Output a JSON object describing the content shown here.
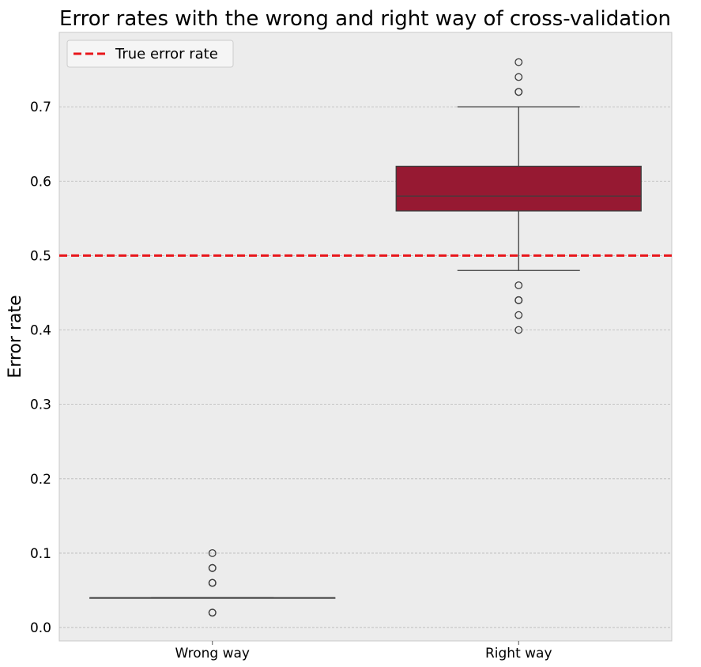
{
  "chart_data": {
    "type": "box",
    "title": "Error rates with the wrong and right way of cross-validation",
    "xlabel": "",
    "ylabel": "Error rate",
    "ylim": [
      -0.018,
      0.8
    ],
    "yticks": [
      0.0,
      0.1,
      0.2,
      0.3,
      0.4,
      0.5,
      0.6,
      0.7
    ],
    "ytick_labels": [
      "0.0",
      "0.1",
      "0.2",
      "0.3",
      "0.4",
      "0.5",
      "0.6",
      "0.7"
    ],
    "grid": true,
    "categories": [
      "Wrong way",
      "Right way"
    ],
    "boxes": [
      {
        "category": "Wrong way",
        "whisker_low": 0.04,
        "q1": 0.04,
        "median": 0.04,
        "q3": 0.04,
        "whisker_high": 0.04,
        "outliers": [
          0.1,
          0.08,
          0.08,
          0.06,
          0.06,
          0.06,
          0.02,
          0.02
        ],
        "color": "#ff3333"
      },
      {
        "category": "Right way",
        "whisker_low": 0.48,
        "q1": 0.56,
        "median": 0.58,
        "q3": 0.62,
        "whisker_high": 0.7,
        "outliers": [
          0.76,
          0.74,
          0.72,
          0.72,
          0.46,
          0.44,
          0.44,
          0.42,
          0.4
        ],
        "color": "#961932"
      }
    ],
    "reference_line": {
      "value": 0.5,
      "label": "True error rate",
      "color": "#e8161b"
    },
    "legend": {
      "position": "top-left",
      "entries": [
        "True error rate"
      ]
    }
  }
}
